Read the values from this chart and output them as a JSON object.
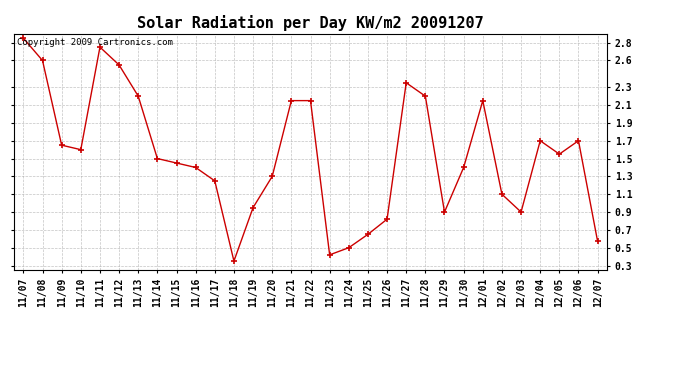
{
  "title": "Solar Radiation per Day KW/m2 20091207",
  "copyright_text": "Copyright 2009 Cartronics.com",
  "labels": [
    "11/07",
    "11/08",
    "11/09",
    "11/10",
    "11/11",
    "11/12",
    "11/13",
    "11/14",
    "11/15",
    "11/16",
    "11/17",
    "11/18",
    "11/19",
    "11/20",
    "11/21",
    "11/22",
    "11/23",
    "11/24",
    "11/25",
    "11/26",
    "11/27",
    "11/28",
    "11/29",
    "11/30",
    "12/01",
    "12/02",
    "12/03",
    "12/04",
    "12/05",
    "12/06",
    "12/07"
  ],
  "values": [
    2.85,
    2.6,
    1.65,
    1.6,
    2.75,
    2.55,
    2.2,
    1.5,
    1.45,
    1.4,
    1.25,
    0.35,
    0.95,
    1.3,
    2.15,
    2.15,
    0.42,
    0.5,
    0.65,
    0.82,
    2.35,
    2.2,
    0.9,
    1.4,
    2.15,
    1.1,
    0.9,
    1.7,
    1.55,
    1.7,
    0.57
  ],
  "line_color": "#cc0000",
  "marker_color": "#cc0000",
  "bg_color": "#ffffff",
  "grid_color": "#aaaaaa",
  "ylim": [
    0.25,
    2.9
  ],
  "yticks": [
    0.3,
    0.5,
    0.7,
    0.9,
    1.1,
    1.3,
    1.5,
    1.7,
    1.9,
    2.1,
    2.3,
    2.6,
    2.8
  ],
  "title_fontsize": 11,
  "label_fontsize": 7,
  "copyright_fontsize": 6.5
}
